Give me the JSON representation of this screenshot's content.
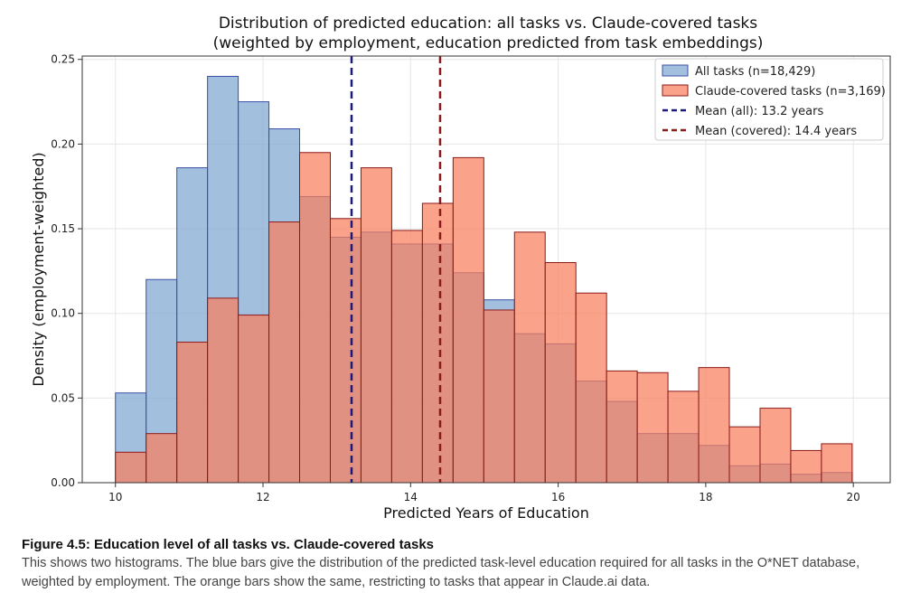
{
  "chart_data": {
    "type": "bar",
    "title": "Distribution of predicted education: all tasks vs. Claude-covered tasks",
    "subtitle": "(weighted by employment, education predicted from task embeddings)",
    "xlabel": "Predicted Years of Education",
    "ylabel": "Density (employment-weighted)",
    "xlim": [
      9.55,
      20.5
    ],
    "ylim": [
      0,
      0.252
    ],
    "x_ticks": [
      10,
      12,
      14,
      16,
      18,
      20
    ],
    "y_ticks": [
      0.0,
      0.05,
      0.1,
      0.15,
      0.2,
      0.25
    ],
    "x_tick_labels": [
      "10",
      "12",
      "14",
      "16",
      "18",
      "20"
    ],
    "y_tick_labels": [
      "0.00",
      "0.05",
      "0.10",
      "0.15",
      "0.20",
      "0.25"
    ],
    "grid": true,
    "legend_position": "top-right",
    "bin_edges": [
      10.0,
      10.416,
      10.832,
      11.248,
      11.664,
      12.08,
      12.496,
      12.912,
      13.328,
      13.744,
      14.16,
      14.576,
      14.992,
      15.408,
      15.824,
      16.24,
      16.656,
      17.072,
      17.488,
      17.904,
      18.32,
      18.736,
      19.152,
      19.568,
      19.984
    ],
    "series": [
      {
        "name": "All tasks (n=18,429)",
        "color": "#7fa6d1",
        "values": [
          0.053,
          0.12,
          0.186,
          0.24,
          0.225,
          0.209,
          0.169,
          0.145,
          0.148,
          0.141,
          0.141,
          0.124,
          0.108,
          0.088,
          0.082,
          0.06,
          0.048,
          0.029,
          0.029,
          0.022,
          0.01,
          0.011,
          0.005,
          0.006,
          0.002
        ]
      },
      {
        "name": "Claude-covered tasks (n=3,169)",
        "color": "#fa7f5d",
        "values": [
          0.018,
          0.029,
          0.083,
          0.109,
          0.099,
          0.154,
          0.195,
          0.156,
          0.186,
          0.149,
          0.165,
          0.192,
          0.102,
          0.148,
          0.13,
          0.112,
          0.066,
          0.065,
          0.054,
          0.068,
          0.033,
          0.044,
          0.019,
          0.023,
          0.001
        ]
      }
    ],
    "reference_lines": [
      {
        "name": "Mean (all): 13.2 years",
        "x": 13.2,
        "color": "#1a1a7a"
      },
      {
        "name": "Mean (covered): 14.4 years",
        "x": 14.4,
        "color": "#8b1a1a"
      }
    ]
  },
  "caption": {
    "title": "Figure 4.5: Education level of all tasks vs. Claude-covered tasks",
    "body": "This shows two histograms. The blue bars give the distribution of the predicted task-level education required for all tasks in the O*NET database, weighted by employment. The orange bars show the same, restricting to tasks that appear in Claude.ai data."
  }
}
